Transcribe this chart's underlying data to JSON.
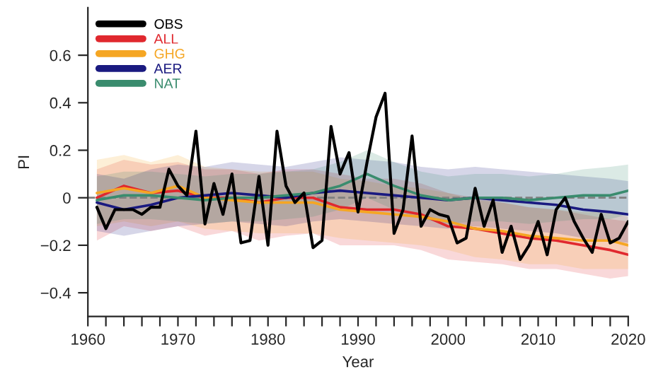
{
  "chart_data": {
    "type": "line",
    "xlabel": "Year",
    "ylabel": "PI",
    "xlim": [
      1960,
      2020
    ],
    "ylim": [
      -0.5,
      0.8
    ],
    "xticks": [
      1960,
      {
        "value": 1962,
        "label": null
      },
      {
        "value": 1964,
        "label": null
      },
      {
        "value": 1966,
        "label": null
      },
      {
        "value": 1968,
        "label": null
      },
      1970,
      {
        "value": 1972,
        "label": null
      },
      {
        "value": 1974,
        "label": null
      },
      {
        "value": 1976,
        "label": null
      },
      {
        "value": 1978,
        "label": null
      },
      1980,
      {
        "value": 1982,
        "label": null
      },
      {
        "value": 1984,
        "label": null
      },
      {
        "value": 1986,
        "label": null
      },
      {
        "value": 1988,
        "label": null
      },
      1990,
      {
        "value": 1992,
        "label": null
      },
      {
        "value": 1994,
        "label": null
      },
      {
        "value": 1996,
        "label": null
      },
      {
        "value": 1998,
        "label": null
      },
      2000,
      {
        "value": 2002,
        "label": null
      },
      {
        "value": 2004,
        "label": null
      },
      {
        "value": 2006,
        "label": null
      },
      {
        "value": 2008,
        "label": null
      },
      2010,
      {
        "value": 2012,
        "label": null
      },
      {
        "value": 2014,
        "label": null
      },
      {
        "value": 2016,
        "label": null
      },
      {
        "value": 2018,
        "label": null
      },
      2020
    ],
    "yticks": [
      {
        "value": -0.4,
        "label": "−0.4"
      },
      {
        "value": -0.2,
        "label": "−0.2"
      },
      0,
      0.2,
      0.4,
      0.6
    ],
    "grid": false,
    "legend": "top left",
    "line_style": "solid",
    "ref_lines": [
      {
        "axis": "y",
        "value": 0,
        "color": "#808080",
        "line_style": "dashed"
      }
    ],
    "series": [
      {
        "name": "OBS",
        "color": "#000000",
        "x": [
          1961,
          1962,
          1963,
          1964,
          1965,
          1966,
          1967,
          1968,
          1969,
          1970,
          1971,
          1972,
          1973,
          1974,
          1975,
          1976,
          1977,
          1978,
          1979,
          1980,
          1981,
          1982,
          1983,
          1984,
          1985,
          1986,
          1987,
          1988,
          1989,
          1990,
          1991,
          1992,
          1993,
          1994,
          1995,
          1996,
          1997,
          1998,
          1999,
          2000,
          2001,
          2002,
          2003,
          2004,
          2005,
          2006,
          2007,
          2008,
          2009,
          2010,
          2011,
          2012,
          2013,
          2014,
          2015,
          2016,
          2017,
          2018,
          2019,
          2020
        ],
        "values": [
          -0.04,
          -0.13,
          -0.05,
          -0.05,
          -0.05,
          -0.07,
          -0.04,
          -0.04,
          0.12,
          0.05,
          0.01,
          0.28,
          -0.11,
          0.06,
          -0.07,
          0.1,
          -0.19,
          -0.18,
          0.09,
          -0.2,
          0.28,
          0.05,
          -0.02,
          0.02,
          -0.21,
          -0.18,
          0.3,
          0.1,
          0.19,
          -0.06,
          0.15,
          0.34,
          0.44,
          -0.15,
          -0.05,
          0.26,
          -0.12,
          -0.05,
          -0.07,
          -0.08,
          -0.19,
          -0.17,
          0.04,
          -0.12,
          -0.01,
          -0.23,
          -0.12,
          -0.26,
          -0.2,
          -0.1,
          -0.24,
          -0.05,
          0.0,
          -0.1,
          -0.17,
          -0.23,
          -0.07,
          -0.19,
          -0.17,
          -0.1
        ]
      },
      {
        "name": "ALL",
        "color": "#e0282e",
        "x": [
          1961,
          1964,
          1967,
          1970,
          1973,
          1976,
          1979,
          1982,
          1985,
          1988,
          1991,
          1994,
          1997,
          2000,
          2003,
          2006,
          2009,
          2012,
          2015,
          2018,
          2020
        ],
        "values": [
          0.0,
          0.05,
          0.02,
          0.03,
          0.0,
          0.0,
          -0.02,
          0.0,
          0.0,
          -0.04,
          -0.05,
          -0.05,
          -0.07,
          -0.12,
          -0.13,
          -0.15,
          -0.17,
          -0.18,
          -0.2,
          -0.22,
          -0.24
        ],
        "lower": [
          -0.18,
          -0.12,
          -0.14,
          -0.12,
          -0.16,
          -0.14,
          -0.18,
          -0.16,
          -0.15,
          -0.2,
          -0.2,
          -0.2,
          -0.22,
          -0.26,
          -0.27,
          -0.28,
          -0.3,
          -0.3,
          -0.32,
          -0.34,
          -0.33
        ],
        "upper": [
          0.12,
          0.16,
          0.14,
          0.15,
          0.12,
          0.12,
          0.1,
          0.12,
          0.12,
          0.1,
          0.08,
          0.08,
          0.06,
          0.02,
          0.0,
          -0.02,
          -0.04,
          -0.05,
          -0.07,
          -0.09,
          -0.1
        ]
      },
      {
        "name": "GHG",
        "color": "#f5a623",
        "x": [
          1961,
          1964,
          1967,
          1970,
          1973,
          1976,
          1979,
          1982,
          1985,
          1988,
          1991,
          1994,
          1997,
          2000,
          2003,
          2006,
          2009,
          2012,
          2015,
          2018,
          2020
        ],
        "values": [
          0.02,
          0.04,
          0.02,
          0.05,
          0.0,
          -0.01,
          -0.02,
          -0.02,
          -0.02,
          -0.05,
          -0.06,
          -0.07,
          -0.08,
          -0.1,
          -0.13,
          -0.14,
          -0.16,
          -0.17,
          -0.18,
          -0.18,
          -0.2
        ],
        "lower": [
          -0.12,
          -0.1,
          -0.12,
          -0.1,
          -0.13,
          -0.14,
          -0.15,
          -0.15,
          -0.15,
          -0.17,
          -0.18,
          -0.19,
          -0.2,
          -0.22,
          -0.25,
          -0.26,
          -0.28,
          -0.28,
          -0.3,
          -0.3,
          -0.3
        ],
        "upper": [
          0.16,
          0.18,
          0.15,
          0.18,
          0.13,
          0.12,
          0.11,
          0.11,
          0.11,
          0.08,
          0.07,
          0.05,
          0.04,
          0.02,
          -0.01,
          -0.02,
          -0.04,
          -0.05,
          -0.06,
          -0.06,
          -0.08
        ]
      },
      {
        "name": "AER",
        "color": "#1a1a80",
        "x": [
          1961,
          1964,
          1967,
          1970,
          1973,
          1976,
          1979,
          1982,
          1985,
          1988,
          1991,
          1994,
          1997,
          2000,
          2003,
          2006,
          2009,
          2012,
          2015,
          2018,
          2020
        ],
        "values": [
          -0.02,
          -0.05,
          -0.03,
          0.0,
          0.01,
          0.02,
          0.01,
          0.0,
          0.02,
          0.03,
          0.02,
          0.01,
          0.0,
          -0.01,
          0.0,
          -0.01,
          -0.02,
          -0.03,
          -0.05,
          -0.06,
          -0.07
        ],
        "lower": [
          -0.14,
          -0.16,
          -0.14,
          -0.12,
          -0.11,
          -0.1,
          -0.11,
          -0.12,
          -0.1,
          -0.09,
          -0.1,
          -0.11,
          -0.12,
          -0.13,
          -0.12,
          -0.13,
          -0.14,
          -0.15,
          -0.17,
          -0.18,
          -0.19
        ],
        "upper": [
          0.1,
          0.08,
          0.12,
          0.14,
          0.13,
          0.15,
          0.14,
          0.13,
          0.15,
          0.17,
          0.16,
          0.15,
          0.13,
          0.12,
          0.13,
          0.12,
          0.11,
          0.1,
          0.09,
          0.08,
          0.07
        ]
      },
      {
        "name": "NAT",
        "color": "#3a8c6e",
        "x": [
          1961,
          1964,
          1967,
          1970,
          1973,
          1976,
          1979,
          1982,
          1985,
          1988,
          1991,
          1994,
          1997,
          2000,
          2003,
          2006,
          2009,
          2012,
          2015,
          2018,
          2020
        ],
        "values": [
          -0.01,
          0.01,
          0.01,
          0.0,
          -0.01,
          0.0,
          0.0,
          0.01,
          0.02,
          0.05,
          0.1,
          0.05,
          0.01,
          -0.01,
          0.0,
          0.0,
          -0.01,
          0.0,
          0.01,
          0.01,
          0.03
        ],
        "lower": [
          -0.11,
          -0.09,
          -0.09,
          -0.1,
          -0.11,
          -0.1,
          -0.1,
          -0.09,
          -0.08,
          -0.05,
          0.0,
          -0.05,
          -0.09,
          -0.11,
          -0.1,
          -0.1,
          -0.11,
          -0.1,
          -0.09,
          -0.09,
          -0.07
        ],
        "upper": [
          0.09,
          0.11,
          0.11,
          0.1,
          0.09,
          0.1,
          0.1,
          0.11,
          0.12,
          0.15,
          0.2,
          0.15,
          0.11,
          0.09,
          0.1,
          0.1,
          0.09,
          0.1,
          0.12,
          0.13,
          0.14
        ]
      }
    ]
  }
}
